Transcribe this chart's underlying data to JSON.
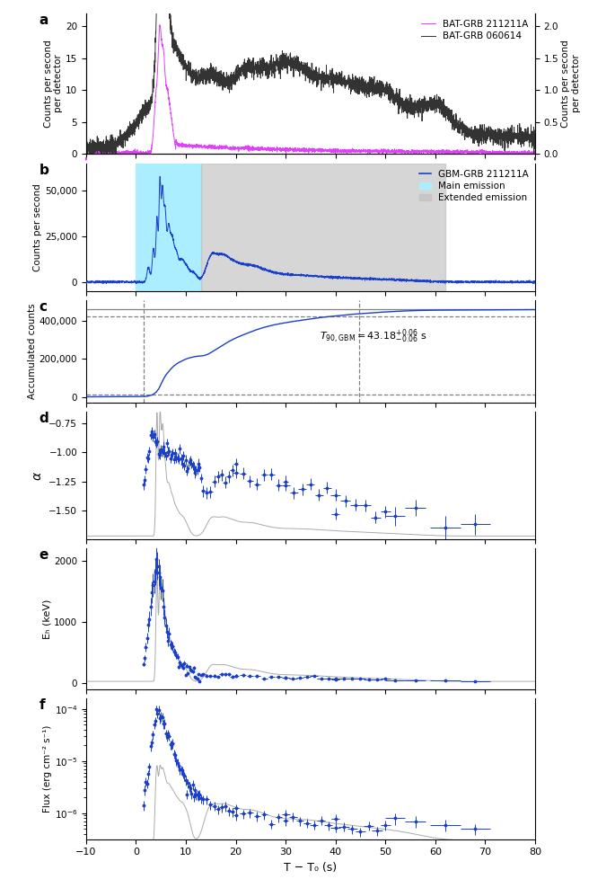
{
  "panel_labels": [
    "a",
    "b",
    "c",
    "d",
    "e",
    "f"
  ],
  "xlim": [
    -10,
    80
  ],
  "xticks": [
    -10,
    0,
    10,
    20,
    30,
    40,
    50,
    60,
    70,
    80
  ],
  "xlabel": "T − T₀ (s)",
  "panel_a": {
    "ylabel_left": "Counts per second\nper detector",
    "ylabel_right": "Counts per second\nper detector",
    "ylim_left": [
      0,
      22
    ],
    "ylim_right": [
      0,
      2.2
    ],
    "yticks_left": [
      0,
      5,
      10,
      15,
      20
    ],
    "yticks_right": [
      0,
      0.5,
      1.0,
      1.5,
      2.0
    ],
    "magenta_label": "BAT-GRB 211211A",
    "black_label": "BAT-GRB 060614",
    "magenta_color": "#e040fb",
    "black_color": "#333333"
  },
  "panel_b": {
    "ylabel": "Counts per second",
    "ylim": [
      -5000,
      65000
    ],
    "yticks": [
      0,
      25000,
      50000
    ],
    "blue_color": "#1a3fcc",
    "cyan_region": [
      0,
      13
    ],
    "gray_region": [
      13,
      62
    ],
    "cyan_color": "#aaeeff",
    "gray_color": "#c0c0c0",
    "legend_blue": "GBM-GRB 211211A",
    "legend_cyan": "Main emission",
    "legend_gray": "Extended emission"
  },
  "panel_c": {
    "ylabel": "Accumulated counts",
    "ylim": [
      -30000,
      510000
    ],
    "yticks": [
      0,
      200000,
      400000
    ],
    "yticklabels": [
      "0",
      "200,000",
      "400,000"
    ],
    "dashed_high_y": 425000,
    "dashed_low_y": 12000,
    "solid_line_y": 462000,
    "vline_x1": 1.5,
    "vline_x2": 44.7,
    "blue_color": "#1a3fcc"
  },
  "panel_d": {
    "ylabel": "α",
    "ylim": [
      -1.75,
      -0.65
    ],
    "yticks": [
      -1.5,
      -1.25,
      -1.0,
      -0.75
    ],
    "blue_color": "#1a3fcc",
    "gray_color": "#aaaaaa"
  },
  "panel_e": {
    "ylabel": "Eₕ (keV)",
    "ylim": [
      -100,
      2200
    ],
    "yticks": [
      0,
      1000,
      2000
    ],
    "blue_color": "#1a3fcc",
    "gray_color": "#aaaaaa"
  },
  "panel_f": {
    "ylabel": "Flux (erg cm⁻² s⁻¹)",
    "blue_color": "#1a3fcc",
    "gray_color": "#aaaaaa"
  }
}
